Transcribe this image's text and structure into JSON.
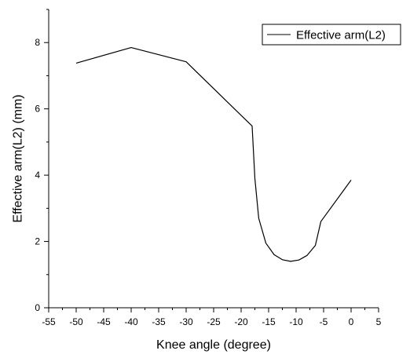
{
  "chart_data": {
    "type": "line",
    "title": "",
    "xlabel": "Knee angle (degree)",
    "ylabel": "Effective arm(L2) (mm)",
    "xlim": [
      -55,
      5
    ],
    "ylim": [
      0,
      9
    ],
    "x_ticks": [
      "-55",
      "-50",
      "-45",
      "-40",
      "-35",
      "-30",
      "-25",
      "-20",
      "-15",
      "-10",
      "-5",
      "0",
      "5"
    ],
    "y_ticks": [
      "0",
      "2",
      "4",
      "6",
      "8"
    ],
    "grid": false,
    "legend_position": "top-right",
    "series": [
      {
        "name": "Effective arm(L2)",
        "color": "#000000",
        "points": [
          [
            -50,
            7.38
          ],
          [
            -40,
            7.85
          ],
          [
            -30,
            7.42
          ],
          [
            -18,
            5.48
          ],
          [
            -17.5,
            3.9
          ],
          [
            -16.8,
            2.7
          ],
          [
            -15.5,
            1.95
          ],
          [
            -14,
            1.6
          ],
          [
            -12.5,
            1.45
          ],
          [
            -11,
            1.4
          ],
          [
            -9.5,
            1.44
          ],
          [
            -8,
            1.58
          ],
          [
            -6.5,
            1.88
          ],
          [
            -5.5,
            2.6
          ],
          [
            0,
            3.85
          ]
        ]
      }
    ]
  }
}
